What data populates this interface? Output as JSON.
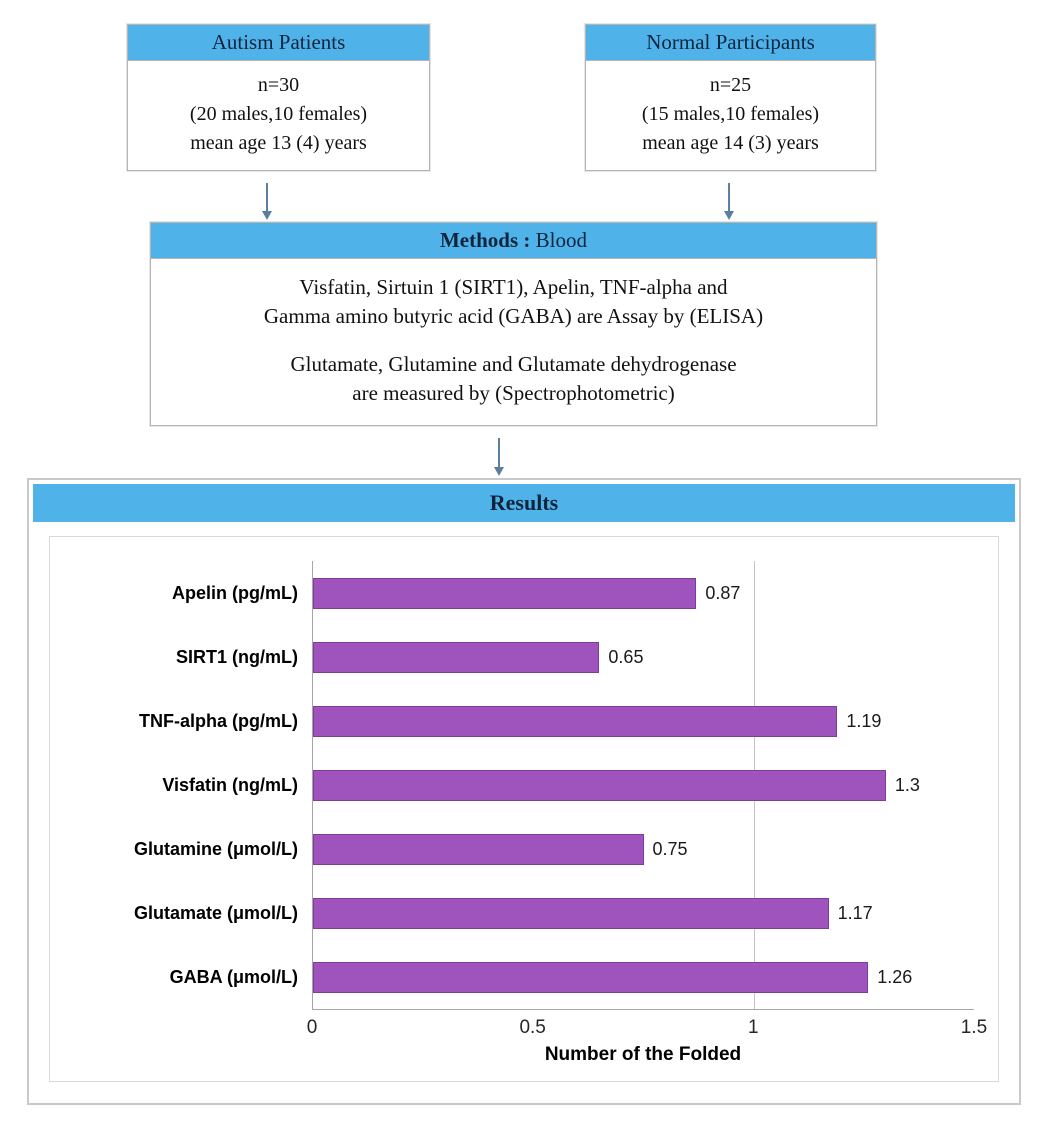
{
  "flowchart": {
    "autism_box": {
      "title": "Autism Patients",
      "lines": [
        "n=30",
        "(20 males,10 females)",
        "mean age 13 (4) years"
      ]
    },
    "normal_box": {
      "title": "Normal Participants",
      "lines": [
        "n=25",
        "(15 males,10 females)",
        "mean age 14 (3) years"
      ]
    },
    "methods_box": {
      "title_bold": "Methods :",
      "title_rest": " Blood",
      "assay_lines": [
        "Visfatin, Sirtuin 1 (SIRT1), Apelin, TNF-alpha and",
        "Gamma amino butyric acid (GABA) are Assay by (ELISA)"
      ],
      "spectro_lines": [
        "Glutamate, Glutamine and Glutamate dehydrogenase",
        "are measured by (Spectrophotometric)"
      ]
    },
    "results_title": "Results"
  },
  "chart_data": {
    "type": "bar",
    "orientation": "horizontal",
    "categories": [
      "Apelin (pg/mL)",
      "SIRT1 (ng/mL)",
      "TNF-alpha (pg/mL)",
      "Visfatin (ng/mL)",
      "Glutamine (μmol/L)",
      "Glutamate (μmol/L)",
      "GABA (μmol/L)"
    ],
    "values": [
      0.87,
      0.65,
      1.19,
      1.3,
      0.75,
      1.17,
      1.26
    ],
    "value_labels": [
      "0.87",
      "0.65",
      "1.19",
      "1.3",
      "0.75",
      "1.17",
      "1.26"
    ],
    "xlabel": "Number of the Folded",
    "x_ticks": [
      {
        "label": "0",
        "value": 0
      },
      {
        "label": "0.5",
        "value": 0.5
      },
      {
        "label": "1",
        "value": 1
      },
      {
        "label": "1.5",
        "value": 1.5
      }
    ],
    "xlim": [
      0,
      1.5
    ],
    "gridline_values": [
      1
    ],
    "legend": "none"
  },
  "colors": {
    "accent_blue": "#4fb3ea",
    "arrow": "#5b7f9e",
    "bar_fill": "#9e54bc",
    "bar_border": "#7d3c98"
  }
}
